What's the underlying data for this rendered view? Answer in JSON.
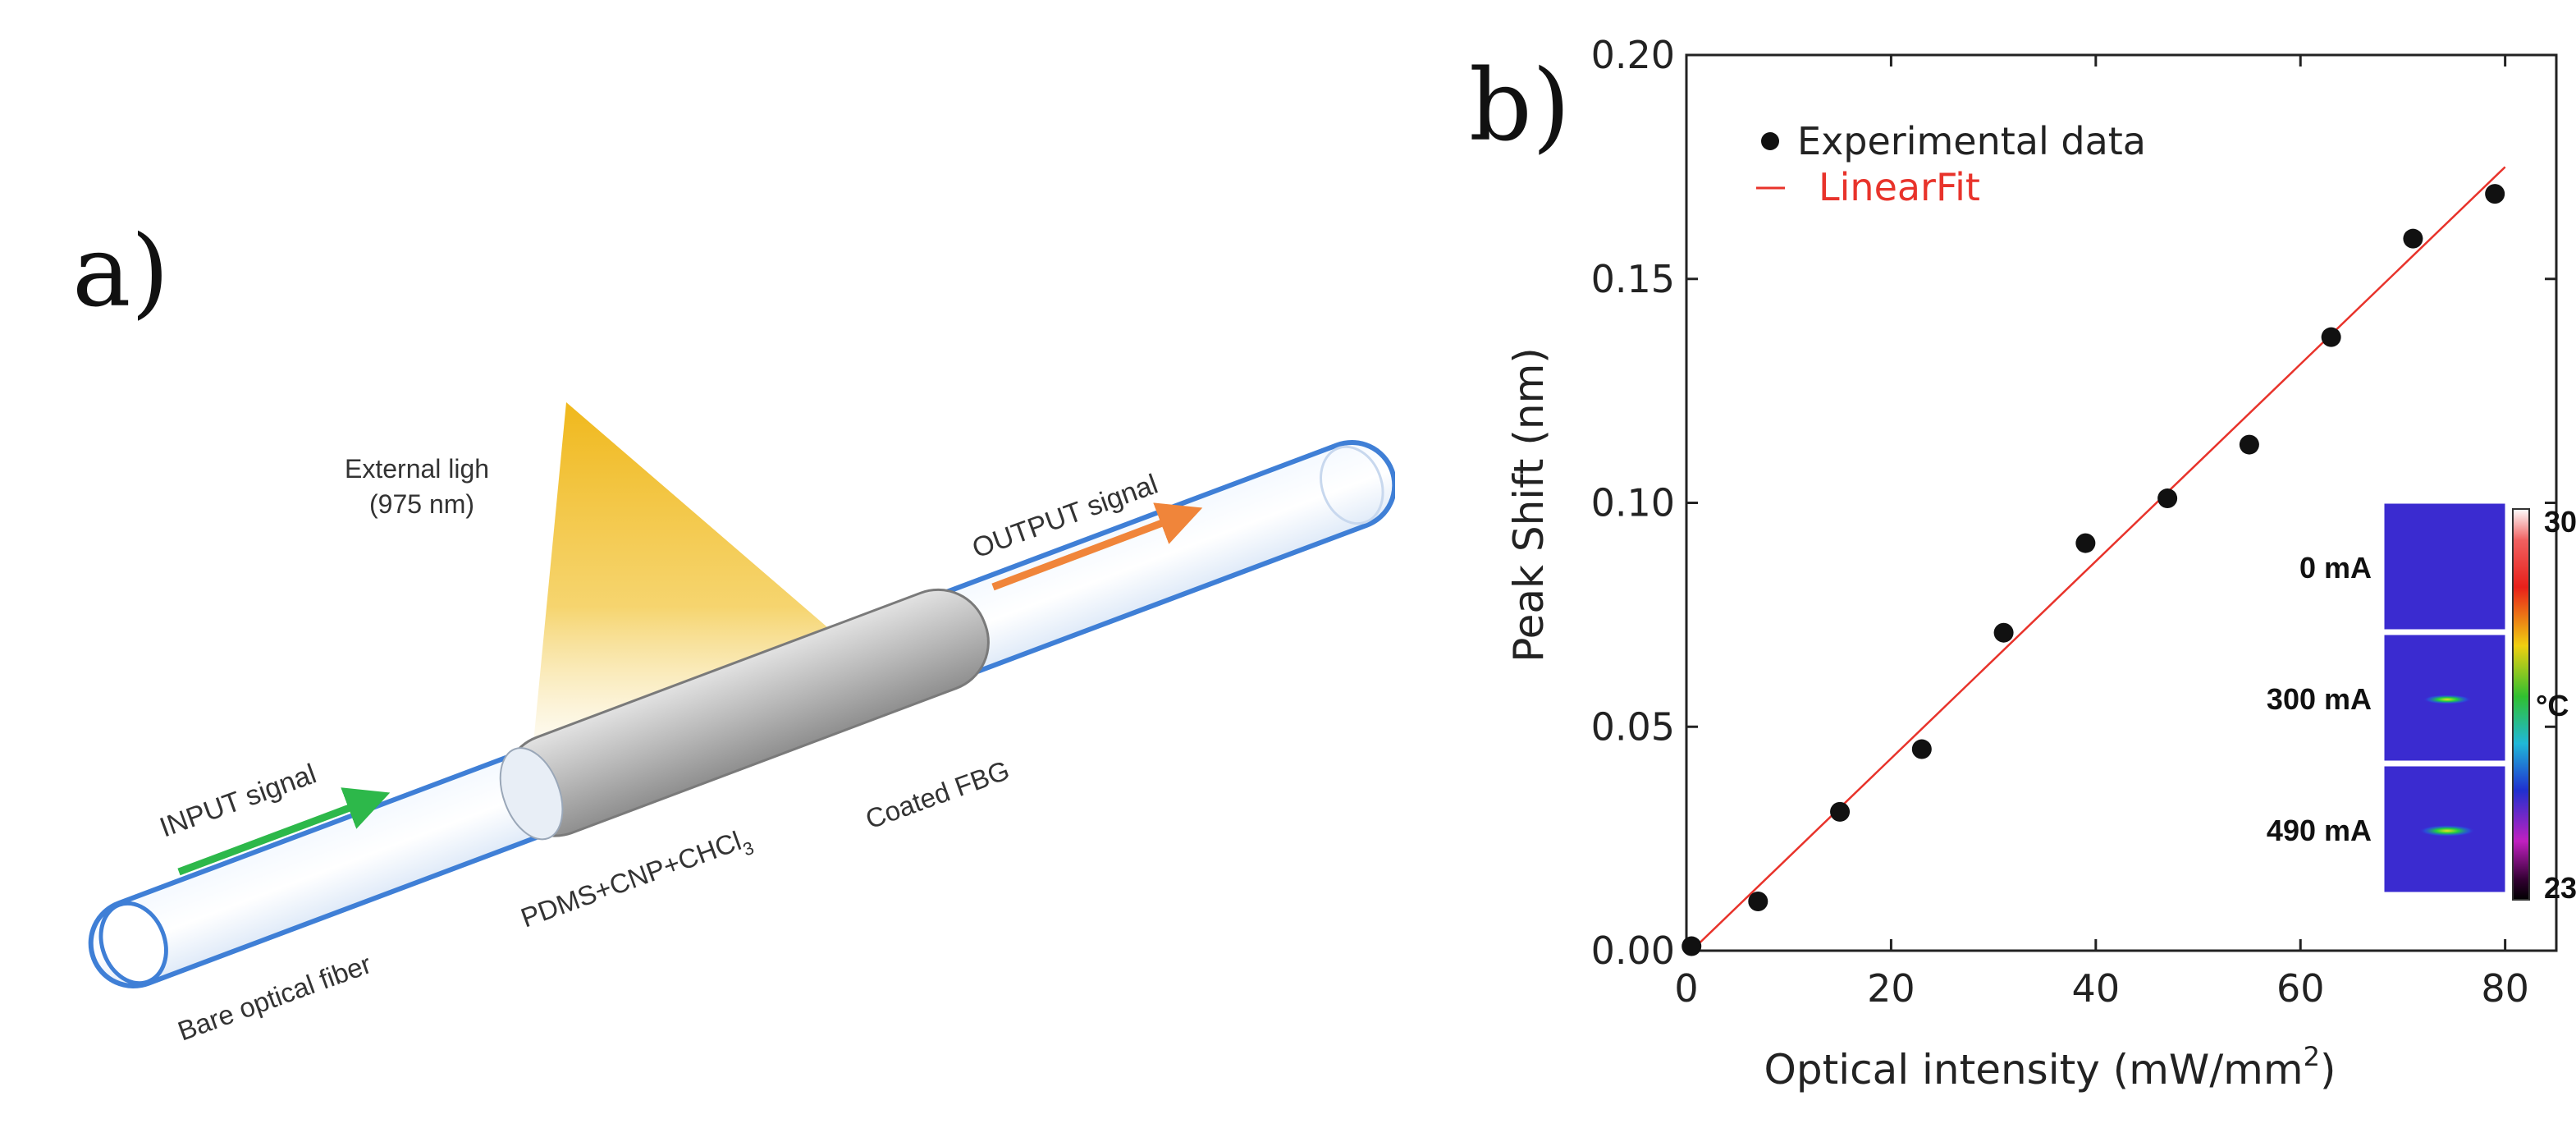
{
  "panels": {
    "a_label": "a)",
    "b_label": "b)"
  },
  "schematic": {
    "external_light_line1": "External ligh",
    "external_light_line2": "(975 nm)",
    "output_signal": "OUTPUT signal",
    "input_signal": "INPUT signal",
    "coating_formula_main": "PDMS+CNP+CHCl",
    "coating_formula_sub": "3",
    "coated_fbg": "Coated FBG",
    "bare_fiber": "Bare optical fiber",
    "colors": {
      "light_cone": "#f2c232",
      "input_arrow": "#2db84a",
      "output_arrow": "#f0853a",
      "fiber_edge": "#3f7fd6",
      "coating": "#b8b8b8"
    }
  },
  "chart_data": {
    "type": "scatter",
    "xlabel": "Optical intensity (mW/mm",
    "xlabel_sup": "2",
    "xlabel_close": ")",
    "ylabel": "Peak Shift (nm)",
    "xlim": [
      0,
      85
    ],
    "ylim": [
      0,
      0.2
    ],
    "x_ticks": [
      0,
      20,
      40,
      60,
      80
    ],
    "x_tick_labels": [
      "0",
      "20",
      "40",
      "60",
      "80"
    ],
    "y_ticks": [
      0,
      0.05,
      0.1,
      0.15,
      0.2
    ],
    "y_tick_labels": [
      "0.00",
      "0.05",
      "0.10",
      "0.15",
      "0.20"
    ],
    "legend_position": "top-left",
    "series": [
      {
        "name": "Experimental data",
        "kind": "scatter",
        "color": "#111111",
        "x": [
          0.5,
          7,
          15,
          23,
          31,
          39,
          47,
          55,
          63,
          71,
          79
        ],
        "y": [
          0.001,
          0.011,
          0.031,
          0.045,
          0.071,
          0.091,
          0.101,
          0.113,
          0.137,
          0.159,
          0.169
        ]
      },
      {
        "name": "LinearFit",
        "kind": "line",
        "color": "#e8332b",
        "x": [
          0.5,
          80
        ],
        "y": [
          0.0,
          0.175
        ]
      }
    ],
    "inset": {
      "rows": [
        {
          "label": "0 mA",
          "spot": 0
        },
        {
          "label": "300 mA",
          "spot": 0.6
        },
        {
          "label": "490 mA",
          "spot": 1
        }
      ],
      "colorbar_max": "30",
      "colorbar_min": "23",
      "colorbar_unit": "°C"
    }
  }
}
